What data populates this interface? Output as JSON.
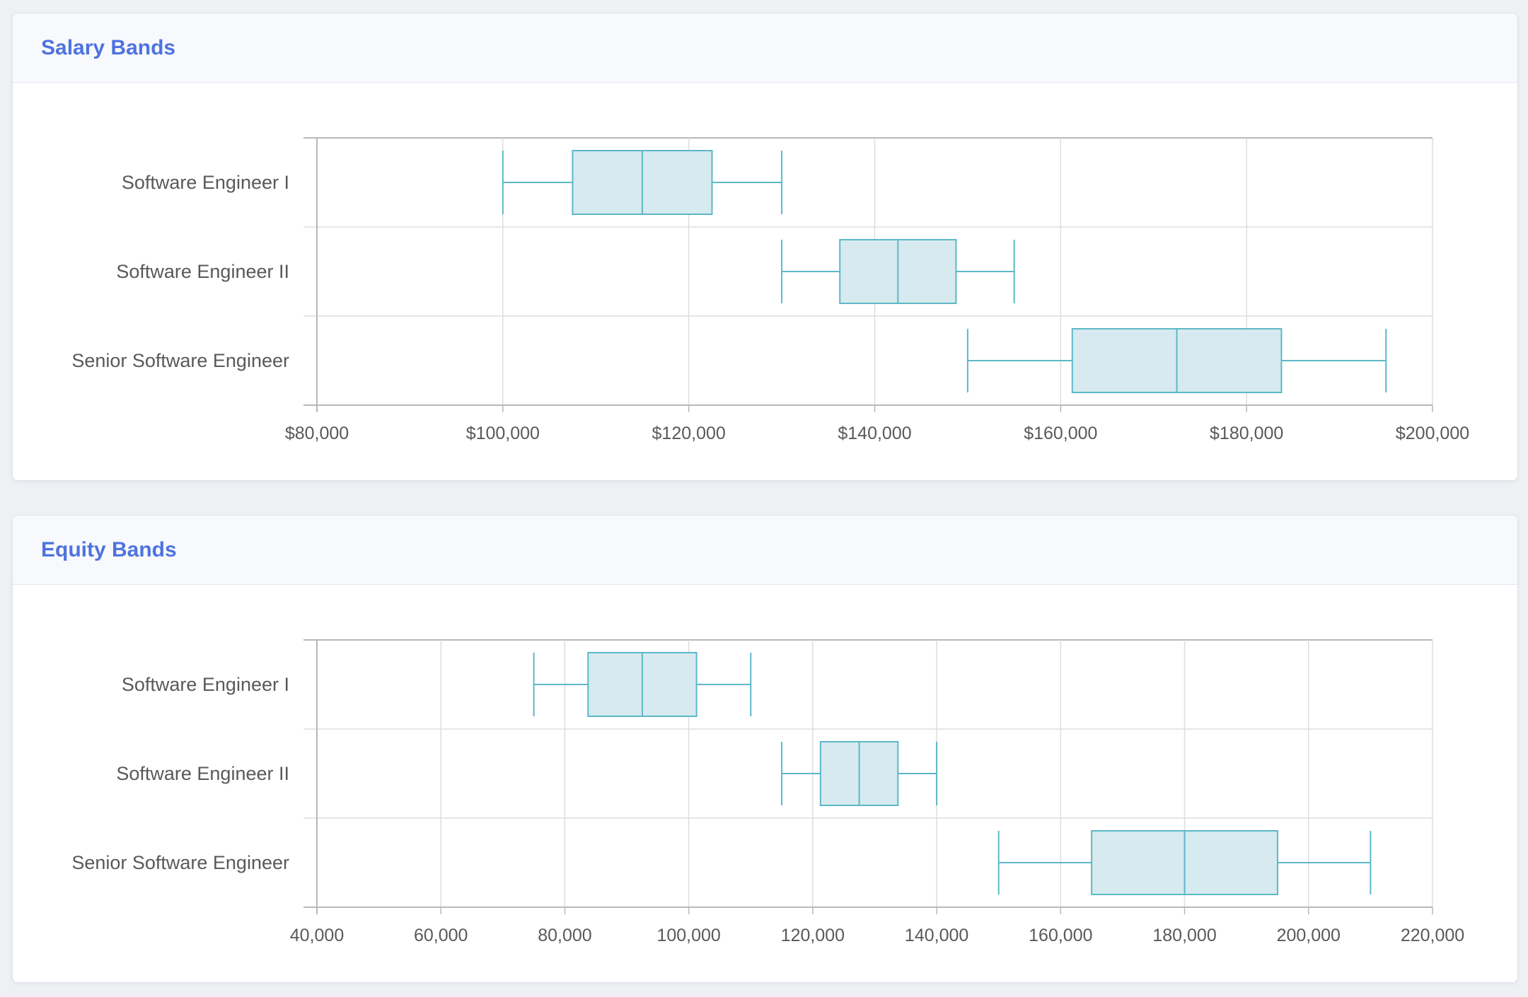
{
  "colors": {
    "box_fill": "#d6eaef",
    "box_stroke": "#5cb8c8",
    "grid": "#dedede",
    "axis": "#b8b8b8",
    "title": "#4e73df"
  },
  "cards": [
    {
      "title": "Salary Bands",
      "chart_data": {
        "type": "boxplot",
        "orientation": "horizontal",
        "categories": [
          "Software Engineer I",
          "Software Engineer II",
          "Senior Software Engineer"
        ],
        "boxes": [
          {
            "min": 100000,
            "q1": 107500,
            "median": 115000,
            "q3": 122500,
            "max": 130000
          },
          {
            "min": 130000,
            "q1": 136250,
            "median": 142500,
            "q3": 148750,
            "max": 155000
          },
          {
            "min": 150000,
            "q1": 161250,
            "median": 172500,
            "q3": 183750,
            "max": 195000
          }
        ],
        "xlim": [
          80000,
          200000
        ],
        "ticks": [
          80000,
          100000,
          120000,
          140000,
          160000,
          180000,
          200000
        ],
        "tick_labels": [
          "$80,000",
          "$100,000",
          "$120,000",
          "$140,000",
          "$160,000",
          "$180,000",
          "$200,000"
        ],
        "grid": true
      }
    },
    {
      "title": "Equity Bands",
      "chart_data": {
        "type": "boxplot",
        "orientation": "horizontal",
        "categories": [
          "Software Engineer I",
          "Software Engineer II",
          "Senior Software Engineer"
        ],
        "boxes": [
          {
            "min": 75000,
            "q1": 83750,
            "median": 92500,
            "q3": 101250,
            "max": 110000
          },
          {
            "min": 115000,
            "q1": 121250,
            "median": 127500,
            "q3": 133750,
            "max": 140000
          },
          {
            "min": 150000,
            "q1": 165000,
            "median": 180000,
            "q3": 195000,
            "max": 210000
          }
        ],
        "xlim": [
          40000,
          220000
        ],
        "ticks": [
          40000,
          60000,
          80000,
          100000,
          120000,
          140000,
          160000,
          180000,
          200000,
          220000
        ],
        "tick_labels": [
          "40,000",
          "60,000",
          "80,000",
          "100,000",
          "120,000",
          "140,000",
          "160,000",
          "180,000",
          "200,000",
          "220,000"
        ],
        "grid": true
      }
    }
  ]
}
